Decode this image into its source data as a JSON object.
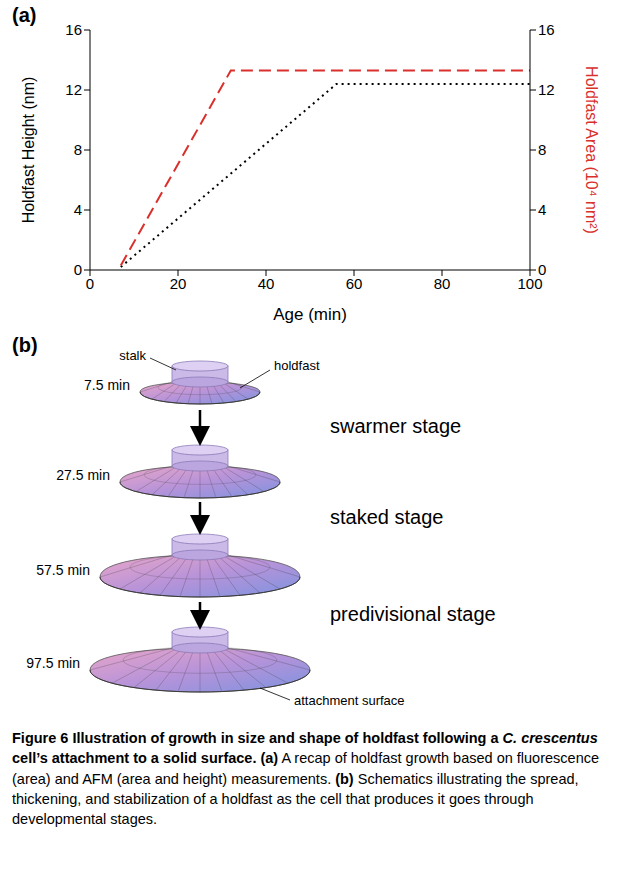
{
  "panels": {
    "a": "(a)",
    "b": "(b)"
  },
  "chart_data": {
    "type": "line",
    "x_label": "Age (min)",
    "y_label": "Holdfast Height (nm)",
    "y2_label": "Holdfast Area (10⁴ nm²)",
    "xlim": [
      0,
      100
    ],
    "xticks": [
      0,
      20,
      40,
      60,
      80,
      100
    ],
    "ylim": [
      0,
      16
    ],
    "yticks": [
      0,
      4,
      8,
      12,
      16
    ],
    "y2lim": [
      0,
      16
    ],
    "y2ticks": [
      0,
      4,
      8,
      12,
      16
    ],
    "grid": false,
    "series": [
      {
        "color": "#000000",
        "line_style": "dotted",
        "x": [
          7,
          56,
          100
        ],
        "values": [
          0.2,
          12.4,
          12.4
        ]
      },
      {
        "color": "#d9302c",
        "line_style": "dashed",
        "axis": "y2",
        "x": [
          7,
          32,
          100
        ],
        "values": [
          0.3,
          13.3,
          13.3
        ]
      }
    ]
  },
  "schematic": {
    "labels": {
      "stalk": "stalk",
      "holdfast": "holdfast",
      "surface": "attachment surface"
    },
    "steps": [
      "7.5 min",
      "27.5 min",
      "57.5 min",
      "97.5 min"
    ],
    "stages": [
      "swarmer stage",
      "staked stage",
      "predivisional stage"
    ]
  },
  "caption": {
    "title_start": "Figure 6 Illustration of growth in size and shape of holdfast following a ",
    "species": "C. crescentus",
    "title_end": " cell’s attachment to a solid surface.",
    "parts": [
      {
        "label": "(a)",
        "text": " A recap of holdfast growth based on fluorescence (area) and AFM (area and height) measurements. "
      },
      {
        "label": "(b)",
        "text": " Schematics illustrating the spread, thickening, and stabilization of a holdfast as the cell that produces it goes through developmental stages."
      }
    ]
  }
}
